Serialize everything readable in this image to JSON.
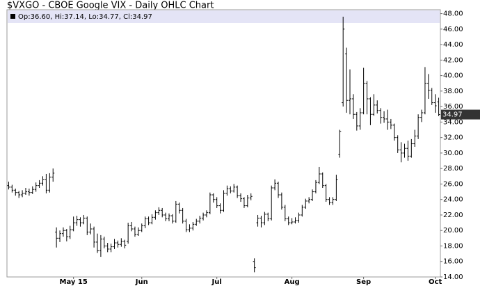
{
  "chart_data": {
    "type": "ohlc",
    "title": "$VXGO - CBOE Google VIX - Daily OHLC Chart",
    "legend": "Op:36.60, Hi:37.14, Lo:34.77, Cl:34.97",
    "color": "#000000",
    "grid": false,
    "ylim": [
      14,
      48.5
    ],
    "yticks": [
      {
        "value": 14,
        "label": "14.00"
      },
      {
        "value": 16,
        "label": "16.00"
      },
      {
        "value": 18,
        "label": "18.00"
      },
      {
        "value": 20,
        "label": "20.00"
      },
      {
        "value": 22,
        "label": "22.00"
      },
      {
        "value": 24,
        "label": "24.00"
      },
      {
        "value": 26,
        "label": "26.00"
      },
      {
        "value": 28,
        "label": "28.00"
      },
      {
        "value": 30,
        "label": "30.00"
      },
      {
        "value": 32,
        "label": "32.00"
      },
      {
        "value": 34,
        "label": "34.00"
      },
      {
        "value": 36,
        "label": "36.00"
      },
      {
        "value": 38,
        "label": "38.00"
      },
      {
        "value": 40,
        "label": "40.00"
      },
      {
        "value": 42,
        "label": "42.00"
      },
      {
        "value": 44,
        "label": "44.00"
      },
      {
        "value": 46,
        "label": "46.00"
      },
      {
        "value": 48,
        "label": "48.00"
      }
    ],
    "categories": [
      null,
      null,
      null,
      null,
      null,
      null,
      null,
      null,
      null,
      null,
      null,
      null,
      null,
      null,
      null,
      null,
      null,
      null,
      null,
      "May 15",
      null,
      null,
      null,
      null,
      null,
      null,
      null,
      null,
      null,
      null,
      null,
      null,
      null,
      null,
      null,
      null,
      null,
      null,
      null,
      "Jun",
      null,
      null,
      null,
      null,
      null,
      null,
      null,
      null,
      null,
      null,
      null,
      null,
      null,
      null,
      null,
      null,
      null,
      null,
      null,
      null,
      null,
      "Jul",
      null,
      null,
      null,
      null,
      null,
      null,
      null,
      null,
      null,
      null,
      null,
      null,
      null,
      null,
      null,
      null,
      null,
      null,
      null,
      null,
      null,
      "Aug",
      null,
      null,
      null,
      null,
      null,
      null,
      null,
      null,
      null,
      null,
      null,
      null,
      null,
      null,
      null,
      null,
      null,
      null,
      null,
      null,
      "Sep",
      null,
      null,
      null,
      null,
      null,
      null,
      null,
      null,
      null,
      null,
      null,
      null,
      null,
      null,
      null,
      null,
      null,
      null,
      null,
      null,
      "Oct",
      null
    ],
    "open": [
      25.8,
      25.6,
      25.2,
      24.9,
      24.6,
      24.8,
      25.0,
      24.9,
      25.3,
      25.8,
      26.1,
      26.6,
      25.2,
      26.9,
      19.8,
      19.0,
      19.6,
      20.0,
      19.2,
      20.1,
      21.0,
      21.4,
      21.0,
      21.6,
      19.8,
      20.2,
      18.5,
      17.4,
      18.9,
      18.0,
      17.6,
      17.9,
      18.4,
      18.2,
      18.6,
      18.6,
      20.6,
      20.2,
      19.5,
      20.0,
      20.6,
      21.5,
      21.0,
      21.7,
      22.3,
      22.6,
      22.0,
      21.5,
      21.9,
      21.2,
      23.4,
      22.6,
      21.2,
      20.1,
      20.3,
      20.8,
      21.2,
      21.6,
      22.0,
      22.3,
      24.6,
      24.0,
      23.2,
      22.6,
      24.8,
      25.4,
      25.1,
      25.6,
      24.5,
      24.1,
      23.2,
      24.2,
      16.0,
      21.0,
      21.6,
      21.0,
      22.1,
      21.5,
      25.5,
      26.1,
      24.6,
      23.0,
      21.5,
      21.0,
      21.1,
      21.3,
      22.0,
      23.0,
      23.8,
      24.0,
      25.0,
      26.2,
      27.3,
      25.8,
      24.0,
      23.6,
      24.0,
      29.8,
      36.5,
      42.8,
      36.8,
      37.0,
      35.0,
      33.5,
      35.2,
      39.0,
      37.0,
      35.0,
      36.2,
      35.5,
      34.6,
      34.4,
      34.0,
      33.6,
      32.0,
      30.4,
      30.0,
      30.6,
      29.6,
      31.2,
      32.2,
      34.6,
      35.2,
      39.0,
      38.1,
      36.5,
      36.6
    ],
    "high": [
      26.3,
      25.9,
      25.4,
      25.1,
      25.2,
      25.5,
      25.4,
      25.7,
      26.2,
      26.5,
      27.0,
      27.3,
      27.4,
      28.0,
      20.4,
      20.0,
      20.4,
      20.2,
      20.6,
      21.8,
      21.9,
      21.7,
      22.0,
      21.8,
      20.9,
      20.5,
      19.6,
      19.4,
      19.2,
      18.4,
      18.3,
      18.9,
      18.7,
      19.0,
      18.8,
      21.0,
      21.1,
      20.5,
      20.4,
      20.9,
      21.8,
      21.8,
      22.1,
      22.6,
      23.0,
      22.9,
      22.3,
      22.2,
      22.1,
      23.8,
      23.6,
      22.9,
      21.5,
      20.8,
      21.1,
      21.5,
      21.9,
      22.3,
      22.6,
      24.9,
      24.8,
      24.3,
      23.5,
      25.2,
      25.8,
      25.7,
      26.0,
      25.8,
      24.8,
      24.3,
      24.6,
      24.8,
      16.4,
      22.0,
      21.9,
      22.4,
      22.3,
      25.8,
      26.6,
      26.3,
      24.9,
      23.3,
      21.8,
      21.6,
      21.7,
      22.3,
      23.3,
      24.1,
      24.3,
      25.3,
      26.5,
      28.2,
      27.5,
      26.0,
      24.3,
      24.3,
      27.2,
      33.0,
      47.6,
      43.6,
      40.8,
      37.6,
      35.3,
      35.8,
      41.0,
      39.3,
      37.2,
      37.6,
      36.8,
      35.8,
      35.4,
      35.6,
      34.4,
      33.8,
      32.3,
      31.4,
      31.2,
      31.6,
      31.8,
      33.0,
      35.0,
      35.6,
      41.1,
      40.2,
      38.4,
      37.6,
      37.14
    ],
    "low": [
      25.3,
      24.9,
      24.5,
      24.2,
      24.3,
      24.6,
      24.5,
      24.7,
      25.0,
      25.5,
      25.8,
      24.8,
      24.9,
      26.3,
      17.8,
      18.5,
      19.2,
      18.6,
      18.9,
      19.9,
      20.6,
      20.5,
      20.8,
      19.4,
      19.5,
      17.8,
      17.1,
      16.6,
      17.7,
      17.2,
      17.2,
      17.6,
      17.8,
      17.9,
      17.7,
      18.3,
      19.9,
      19.2,
      19.3,
      19.8,
      20.3,
      20.7,
      20.8,
      21.4,
      22.0,
      21.7,
      21.2,
      21.2,
      20.9,
      21.0,
      22.2,
      20.9,
      19.8,
      19.8,
      20.0,
      20.6,
      20.9,
      21.3,
      21.7,
      22.1,
      23.6,
      22.9,
      22.2,
      22.4,
      24.5,
      24.8,
      24.9,
      24.2,
      23.7,
      22.9,
      23.0,
      23.9,
      14.6,
      20.5,
      20.4,
      20.7,
      21.2,
      21.3,
      25.2,
      24.2,
      22.7,
      21.2,
      20.7,
      20.8,
      20.9,
      21.0,
      21.8,
      22.8,
      23.5,
      23.8,
      24.8,
      26.0,
      25.5,
      23.7,
      23.3,
      23.3,
      23.8,
      29.4,
      36.0,
      35.2,
      35.0,
      34.4,
      32.9,
      33.0,
      35.0,
      35.0,
      33.6,
      34.8,
      35.1,
      33.8,
      33.9,
      33.0,
      33.1,
      31.6,
      30.0,
      28.8,
      29.4,
      29.0,
      29.4,
      30.8,
      31.8,
      34.0,
      35.0,
      37.0,
      36.2,
      35.2,
      34.77
    ],
    "close": [
      25.6,
      25.2,
      24.9,
      24.6,
      24.8,
      25.0,
      24.9,
      25.3,
      25.8,
      26.1,
      26.6,
      25.2,
      26.9,
      27.4,
      19.0,
      19.6,
      20.0,
      19.2,
      20.1,
      21.0,
      21.4,
      21.0,
      21.6,
      19.8,
      20.2,
      18.5,
      17.4,
      18.9,
      18.0,
      17.6,
      17.9,
      18.4,
      18.2,
      18.6,
      18.1,
      20.6,
      20.2,
      19.5,
      20.0,
      20.6,
      21.5,
      21.0,
      21.7,
      22.3,
      22.6,
      22.0,
      21.5,
      21.9,
      21.2,
      23.4,
      22.6,
      21.2,
      20.1,
      20.3,
      20.8,
      21.2,
      21.6,
      22.0,
      22.3,
      24.6,
      24.0,
      23.2,
      22.6,
      24.8,
      25.4,
      25.1,
      25.6,
      24.5,
      24.1,
      23.2,
      24.2,
      24.4,
      15.2,
      21.6,
      21.0,
      22.1,
      21.5,
      25.5,
      26.1,
      24.6,
      23.0,
      21.5,
      21.0,
      21.1,
      21.3,
      22.0,
      23.0,
      23.8,
      24.0,
      25.0,
      26.2,
      27.3,
      25.8,
      24.0,
      23.6,
      24.0,
      26.6,
      32.8,
      46.0,
      36.8,
      37.0,
      35.0,
      33.5,
      35.2,
      39.0,
      37.0,
      35.0,
      36.2,
      35.5,
      34.6,
      34.4,
      34.0,
      33.6,
      32.0,
      30.4,
      30.0,
      30.6,
      29.6,
      31.2,
      32.2,
      34.6,
      35.2,
      39.0,
      38.1,
      36.5,
      36.1,
      34.97
    ]
  }
}
